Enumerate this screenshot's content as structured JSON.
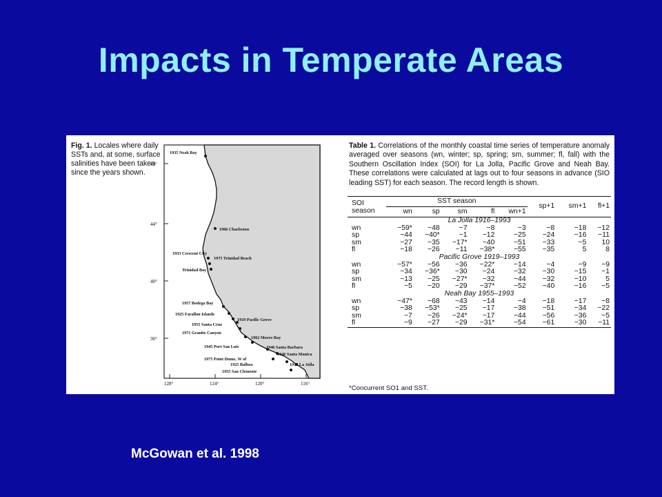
{
  "slide": {
    "title": "Impacts in Temperate Areas",
    "credit": "McGowan et al. 1998"
  },
  "figure": {
    "caption_label": "Fig. 1.",
    "caption_text": "Locales where daily SSTs and, at some, surface salinities have been taken since the years shown.",
    "lat_labels": [
      "48°",
      "44°",
      "40°",
      "36°"
    ],
    "lon_labels": [
      "128°",
      "124°",
      "120°",
      "116°"
    ],
    "sites": [
      "1935 Neah Bay",
      "1966 Charleston",
      "1933 Crescent City",
      "1975 Trinidad Beach",
      "Trinidad Bay",
      "1957 Bodega Bay",
      "1925 Farallon Islands",
      "1955 Santa Cruz",
      "1919 Pacific Grove",
      "1971 Granite Canyon",
      "1962 Morro Bay",
      "1945 Port San Luis",
      "1946 Santa Barbara",
      "1946 Santa Monica",
      "1975 Point Dume, W of",
      "1925 Balboa",
      "1916 La Jolla",
      "1955 San Clemente"
    ]
  },
  "table": {
    "caption_label": "Table 1.",
    "caption_text": "Correlations of the monthly coastal time series of temperature anomaly averaged over seasons (wn, winter; sp, spring; sm, summer; fl, fall) with the Southern Oscillation Index (SOI) for La Jolla, Pacific Grove and Neah Bay. These correlations were calculated at lags out to four seasons in advance (SIO leading SST) for each season. The record length is shown.",
    "header": {
      "soi_season": "SOI season",
      "sst_season": "SST season",
      "cols": [
        "wn",
        "sp",
        "sm",
        "fl",
        "wn+1",
        "sp+1",
        "sm+1",
        "fl+1"
      ]
    },
    "sections": [
      {
        "name": "La Jolla 1916–1993",
        "rows": [
          [
            "wn",
            "−59*",
            "−48",
            "−7",
            "−8",
            "−3",
            "−8",
            "−18",
            "−12"
          ],
          [
            "sp",
            "−44",
            "−40*",
            "−1",
            "−12",
            "−25",
            "−24",
            "−16",
            "−11"
          ],
          [
            "sm",
            "−27",
            "−35",
            "−17*",
            "−40",
            "−51",
            "−33",
            "−5",
            "10"
          ],
          [
            "fl",
            "−18",
            "−26",
            "−11",
            "−38*",
            "−55",
            "−35",
            "5",
            "8"
          ]
        ]
      },
      {
        "name": "Pacific Grove 1919–1993",
        "rows": [
          [
            "wn",
            "−57*",
            "−56",
            "−36",
            "−22*",
            "−14",
            "−4",
            "−9",
            "−9"
          ],
          [
            "sp",
            "−34",
            "−36*",
            "−30",
            "−24",
            "−32",
            "−30",
            "−15",
            "−1"
          ],
          [
            "sm",
            "−13",
            "−25",
            "−27*",
            "−32",
            "−44",
            "−32",
            "−10",
            "5"
          ],
          [
            "fl",
            "−5",
            "−20",
            "−29",
            "−37*",
            "−52",
            "−40",
            "−16",
            "−5"
          ]
        ]
      },
      {
        "name": "Neah Bay 1955–1993",
        "rows": [
          [
            "wn",
            "−47*",
            "−68",
            "−43",
            "−14",
            "−4",
            "−18",
            "−17",
            "−8"
          ],
          [
            "sp",
            "−38",
            "−53*",
            "−25",
            "−17",
            "−38",
            "−51",
            "−34",
            "−22"
          ],
          [
            "sm",
            "−7",
            "−26",
            "−24*",
            "−17",
            "−44",
            "−56",
            "−36",
            "−5"
          ],
          [
            "fl",
            "−9",
            "−27",
            "−29",
            "−31*",
            "−54",
            "−61",
            "−30",
            "−11"
          ]
        ]
      }
    ],
    "footnote": "*Concurrent SO1 and SST."
  }
}
